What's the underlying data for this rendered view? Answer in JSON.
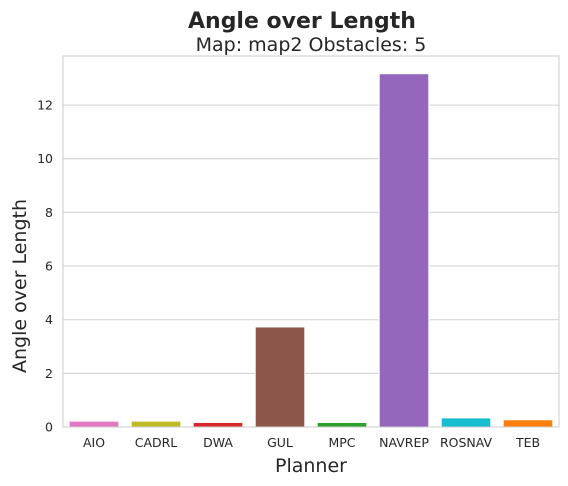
{
  "chart_data": {
    "type": "bar",
    "suptitle": "Angle over Length",
    "title": "Map: map2 Obstacles: 5",
    "xlabel": "Planner",
    "ylabel": "Angle over Length",
    "categories": [
      "AIO",
      "CADRL",
      "DWA",
      "GUL",
      "MPC",
      "NAVREP",
      "ROSNAV",
      "TEB"
    ],
    "values": [
      0.22,
      0.22,
      0.17,
      3.73,
      0.17,
      13.17,
      0.34,
      0.27
    ],
    "colors": [
      "#e377c2",
      "#bcbd22",
      "#d62728",
      "#8c564b",
      "#2ca02c",
      "#9467bd",
      "#17becf",
      "#ff7f0e"
    ],
    "yticks": [
      "0",
      "2",
      "4",
      "6",
      "8",
      "10",
      "12"
    ],
    "ylim": [
      0,
      13.83
    ],
    "grid": "horizontal",
    "legend": "none"
  }
}
